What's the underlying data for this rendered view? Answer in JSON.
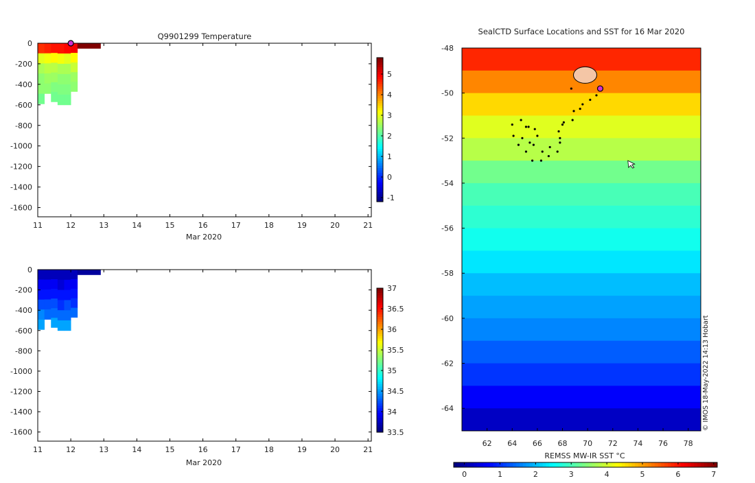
{
  "chart_data": [
    {
      "type": "heatmap",
      "title": "Q9901299  Temperature",
      "xlabel": "Mar 2020",
      "ylabel": "",
      "x_ticks": [
        "11",
        "12",
        "13",
        "14",
        "15",
        "16",
        "17",
        "18",
        "19",
        "20",
        "21"
      ],
      "xlim": [
        11,
        21.1
      ],
      "y_ticks": [
        "0",
        "-200",
        "-400",
        "-600",
        "-800",
        "-1000",
        "-1200",
        "-1400",
        "-1600"
      ],
      "ylim": [
        -1690,
        0
      ],
      "colorbar": {
        "ticks": [
          "-1",
          "0",
          "1",
          "2",
          "3",
          "4",
          "5"
        ],
        "range": [
          -1.2,
          5.8
        ]
      },
      "profiles": [
        {
          "day": 11.0,
          "width": 0.2,
          "bottom": -590,
          "values": [
            4.6,
            3.0,
            2.6,
            2.4,
            2.4,
            2.2
          ]
        },
        {
          "day": 11.2,
          "width": 0.2,
          "bottom": -490,
          "values": [
            4.7,
            3.1,
            2.7,
            2.5,
            2.4
          ]
        },
        {
          "day": 11.4,
          "width": 0.2,
          "bottom": -570,
          "values": [
            4.8,
            3.2,
            2.7,
            2.5,
            2.3,
            2.2
          ]
        },
        {
          "day": 11.6,
          "width": 0.2,
          "bottom": -600,
          "values": [
            4.8,
            3.1,
            2.6,
            2.4,
            2.3,
            2.2
          ]
        },
        {
          "day": 11.8,
          "width": 0.2,
          "bottom": -600,
          "values": [
            4.9,
            3.0,
            2.6,
            2.4,
            2.3,
            2.2
          ]
        },
        {
          "day": 12.0,
          "width": 0.2,
          "bottom": -470,
          "values": [
            5.0,
            3.2,
            2.8,
            2.5,
            2.4
          ]
        },
        {
          "day": 12.2,
          "width": 0.7,
          "bottom": -50,
          "values": [
            5.8
          ]
        }
      ],
      "marker": {
        "day": 12.0,
        "depth": 0
      }
    },
    {
      "type": "heatmap",
      "title": "",
      "xlabel": "Mar 2020",
      "ylabel": "",
      "x_ticks": [
        "11",
        "12",
        "13",
        "14",
        "15",
        "16",
        "17",
        "18",
        "19",
        "20",
        "21"
      ],
      "xlim": [
        11,
        21.1
      ],
      "y_ticks": [
        "0",
        "-200",
        "-400",
        "-600",
        "-800",
        "-1000",
        "-1200",
        "-1400",
        "-1600"
      ],
      "ylim": [
        -1690,
        0
      ],
      "colorbar": {
        "ticks": [
          "33.5",
          "34",
          "34.5",
          "35",
          "35.5",
          "36",
          "36.5",
          "37"
        ],
        "range": [
          33.5,
          37
        ]
      },
      "profiles": [
        {
          "day": 11.0,
          "width": 0.2,
          "bottom": -590,
          "values": [
            33.7,
            33.9,
            34.0,
            34.2,
            34.4,
            34.5
          ]
        },
        {
          "day": 11.2,
          "width": 0.2,
          "bottom": -490,
          "values": [
            33.7,
            33.9,
            34.0,
            34.2,
            34.3
          ]
        },
        {
          "day": 11.4,
          "width": 0.2,
          "bottom": -570,
          "values": [
            33.7,
            33.9,
            34.0,
            34.2,
            34.3,
            34.5
          ]
        },
        {
          "day": 11.6,
          "width": 0.2,
          "bottom": -600,
          "values": [
            33.7,
            33.8,
            34.0,
            34.1,
            34.3,
            34.5
          ]
        },
        {
          "day": 11.8,
          "width": 0.2,
          "bottom": -600,
          "values": [
            33.7,
            33.9,
            34.0,
            34.2,
            34.3,
            34.5
          ]
        },
        {
          "day": 12.0,
          "width": 0.2,
          "bottom": -470,
          "values": [
            33.7,
            33.9,
            34.0,
            34.1,
            34.3
          ]
        },
        {
          "day": 12.2,
          "width": 0.7,
          "bottom": -50,
          "values": [
            33.6
          ]
        }
      ]
    },
    {
      "type": "heatmap",
      "title": "SealCTD Surface Locations and SST for 16 Mar 2020",
      "xlabel": "",
      "ylabel": "",
      "x_ticks": [
        "62",
        "64",
        "66",
        "68",
        "70",
        "72",
        "74",
        "76",
        "78"
      ],
      "xlim": [
        60,
        79
      ],
      "y_ticks": [
        "-48",
        "-50",
        "-52",
        "-54",
        "-56",
        "-58",
        "-60",
        "-62",
        "-64"
      ],
      "ylim": [
        -65,
        -48
      ],
      "colorbar": {
        "label": "REMSS MW-IR SST °C",
        "ticks": [
          "0",
          "1",
          "2",
          "3",
          "4",
          "5",
          "6",
          "7"
        ],
        "range": [
          -0.3,
          7.1
        ]
      },
      "sst_bands": [
        {
          "lat_top": -48,
          "value": 5.9
        },
        {
          "lat_top": -49,
          "value": 5.2
        },
        {
          "lat_top": -50,
          "value": 4.6
        },
        {
          "lat_top": -51,
          "value": 4.1
        },
        {
          "lat_top": -52,
          "value": 3.8
        },
        {
          "lat_top": -53,
          "value": 3.3
        },
        {
          "lat_top": -54,
          "value": 3.0
        },
        {
          "lat_top": -55,
          "value": 2.8
        },
        {
          "lat_top": -56,
          "value": 2.6
        },
        {
          "lat_top": -57,
          "value": 2.3
        },
        {
          "lat_top": -58,
          "value": 2.0
        },
        {
          "lat_top": -59,
          "value": 1.8
        },
        {
          "lat_top": -60,
          "value": 1.6
        },
        {
          "lat_top": -61,
          "value": 1.3
        },
        {
          "lat_top": -62,
          "value": 1.0
        },
        {
          "lat_top": -63,
          "value": 0.6
        },
        {
          "lat_top": -64,
          "value": 0.2
        }
      ],
      "track": [
        [
          68.7,
          -49.8
        ],
        [
          69.4,
          -50.7
        ],
        [
          68.8,
          -51.2
        ],
        [
          68.0,
          -51.4
        ],
        [
          67.7,
          -51.7
        ],
        [
          67.8,
          -52.2
        ],
        [
          67.6,
          -52.6
        ],
        [
          66.9,
          -52.8
        ],
        [
          66.3,
          -53.0
        ],
        [
          65.6,
          -53.0
        ],
        [
          65.1,
          -52.6
        ],
        [
          64.5,
          -52.3
        ],
        [
          64.1,
          -51.9
        ],
        [
          64.0,
          -51.4
        ],
        [
          64.7,
          -51.2
        ],
        [
          65.3,
          -51.5
        ],
        [
          65.8,
          -51.6
        ],
        [
          66.0,
          -51.9
        ],
        [
          65.4,
          -52.2
        ],
        [
          64.8,
          -52.0
        ],
        [
          65.1,
          -51.5
        ],
        [
          65.7,
          -52.3
        ],
        [
          66.4,
          -52.6
        ],
        [
          67.0,
          -52.4
        ],
        [
          67.8,
          -52.0
        ],
        [
          68.1,
          -51.3
        ],
        [
          68.9,
          -50.8
        ],
        [
          69.6,
          -50.5
        ],
        [
          70.2,
          -50.3
        ],
        [
          70.7,
          -50.1
        ],
        [
          71.0,
          -49.8
        ]
      ],
      "deployment_cluster": {
        "lon": 69.8,
        "lat": -49.2
      },
      "marker": {
        "lon": 71.0,
        "lat": -49.8
      },
      "arrow": {
        "lon": 73.2,
        "lat": -53.0
      }
    }
  ],
  "credit": "© IMOS 18-May-2022 14:13 Hobart"
}
